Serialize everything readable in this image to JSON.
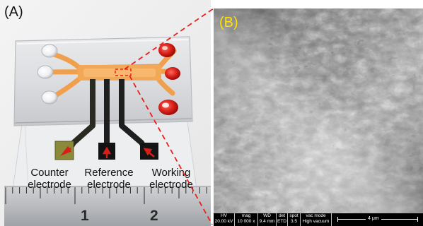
{
  "panel_a": {
    "label": "(A)",
    "electrodes": [
      {
        "line1": "Counter",
        "line2": "electrode"
      },
      {
        "line1": "Reference",
        "line2": "electrode"
      },
      {
        "line1": "Working",
        "line2": "electrode"
      }
    ],
    "ruler_numbers": [
      "1",
      "2"
    ]
  },
  "panel_b": {
    "label": "(B)",
    "databar": {
      "headers": [
        "HV",
        "mag",
        "WD",
        "det",
        "spot",
        "vac mode"
      ],
      "values": [
        "20.00 kV",
        "10 000 x",
        "9.4 mm",
        "ETD",
        "3.5",
        "High vacuum"
      ],
      "scale_label": "4 μm"
    }
  },
  "colors": {
    "label_b": "#ffe000",
    "dashed_line": "#e8201c",
    "channel": "#f0a04c",
    "reservoir": "#d8201a"
  }
}
